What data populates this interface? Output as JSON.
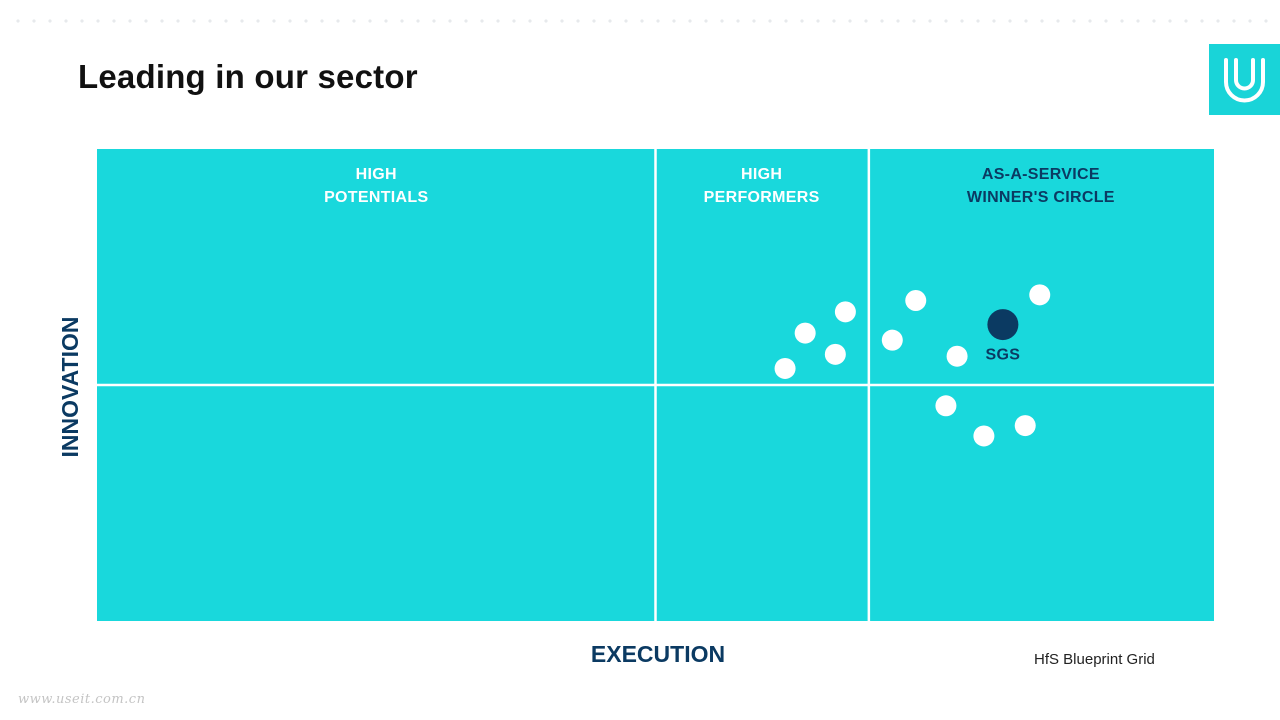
{
  "page": {
    "title": "Leading in our sector",
    "source": "HfS Blueprint Grid",
    "watermark": "www.useit.com.cn",
    "logo_icon": "u-logo-icon"
  },
  "colors": {
    "grid_fill": "#19d8dc",
    "grid_lines": "#ffffff",
    "label_white": "#ffffff",
    "label_navy": "#0b3a62",
    "dot_white": "#ffffff",
    "dot_highlight": "#0b3a62",
    "logo_bg": "#19d4d8"
  },
  "chart_data": {
    "type": "scatter",
    "title": "",
    "xlabel": "EXECUTION",
    "ylabel": "INNOVATION",
    "xlim": [
      0,
      100
    ],
    "ylim": [
      0,
      100
    ],
    "x_dividers": [
      50,
      69.1
    ],
    "y_dividers": [
      50
    ],
    "grid": true,
    "quadrants": [
      {
        "lines": [
          "HIGH",
          "POTENTIALS"
        ],
        "x_center": 25,
        "color": "white"
      },
      {
        "lines": [
          "HIGH",
          "PERFORMERS"
        ],
        "x_center": 59.5,
        "color": "white"
      },
      {
        "lines": [
          "AS-A-SERVICE",
          "WINNER'S CIRCLE"
        ],
        "x_center": 84.5,
        "color": "navy"
      }
    ],
    "series": [
      {
        "points": [
          {
            "x": 61.6,
            "y": 53.5
          },
          {
            "x": 63.4,
            "y": 61.0
          },
          {
            "x": 66.1,
            "y": 56.5
          },
          {
            "x": 67.0,
            "y": 65.5
          },
          {
            "x": 71.2,
            "y": 59.5
          },
          {
            "x": 73.3,
            "y": 67.9
          },
          {
            "x": 77.0,
            "y": 56.1
          },
          {
            "x": 84.4,
            "y": 69.1
          },
          {
            "x": 76.0,
            "y": 45.6
          },
          {
            "x": 79.4,
            "y": 39.2
          },
          {
            "x": 83.1,
            "y": 41.4
          }
        ]
      },
      {
        "name": "SGS",
        "highlight": true,
        "points": [
          {
            "x": 81.1,
            "y": 62.8,
            "label": "SGS"
          }
        ]
      }
    ]
  }
}
